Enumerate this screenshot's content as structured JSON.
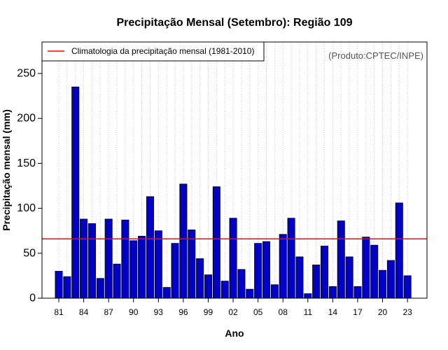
{
  "chart_data": {
    "type": "bar",
    "title": "Precipitação Mensal (Setembro): Região 109",
    "xlabel": "Ano",
    "ylabel": "Precipitação mensal (mm)",
    "source_note": "(Produto:CPTEC/INPE)",
    "legend": {
      "label": "Climatologia da precipitação mensal (1981-2010)",
      "placement": "top-left"
    },
    "climatology": {
      "value": 66,
      "color": "#ff0000"
    },
    "bar_color": "#0000cc",
    "years": [
      1981,
      1982,
      1983,
      1984,
      1985,
      1986,
      1987,
      1988,
      1989,
      1990,
      1991,
      1992,
      1993,
      1994,
      1995,
      1996,
      1997,
      1998,
      1999,
      2000,
      2001,
      2002,
      2003,
      2004,
      2005,
      2006,
      2007,
      2008,
      2009,
      2010,
      2011,
      2012,
      2013,
      2014,
      2015,
      2016,
      2017,
      2018,
      2019,
      2020,
      2021,
      2022,
      2023
    ],
    "values": [
      30,
      24,
      235,
      88,
      83,
      22,
      88,
      38,
      87,
      64,
      69,
      113,
      75,
      12,
      61,
      127,
      76,
      44,
      26,
      124,
      19,
      89,
      32,
      10,
      61,
      63,
      15,
      71,
      89,
      46,
      5,
      37,
      58,
      13,
      86,
      46,
      13,
      68,
      59,
      31,
      42,
      106,
      25
    ],
    "x_tick_labels": [
      "81",
      "84",
      "87",
      "90",
      "93",
      "96",
      "99",
      "02",
      "05",
      "08",
      "11",
      "14",
      "17",
      "20",
      "23"
    ],
    "x_tick_years": [
      1981,
      1984,
      1987,
      1990,
      1993,
      1996,
      1999,
      2002,
      2005,
      2008,
      2011,
      2014,
      2017,
      2020,
      2023
    ],
    "yticks": [
      0,
      50,
      100,
      150,
      200,
      250
    ],
    "ylim": [
      0,
      285
    ],
    "grid": "vertical-dotted"
  }
}
